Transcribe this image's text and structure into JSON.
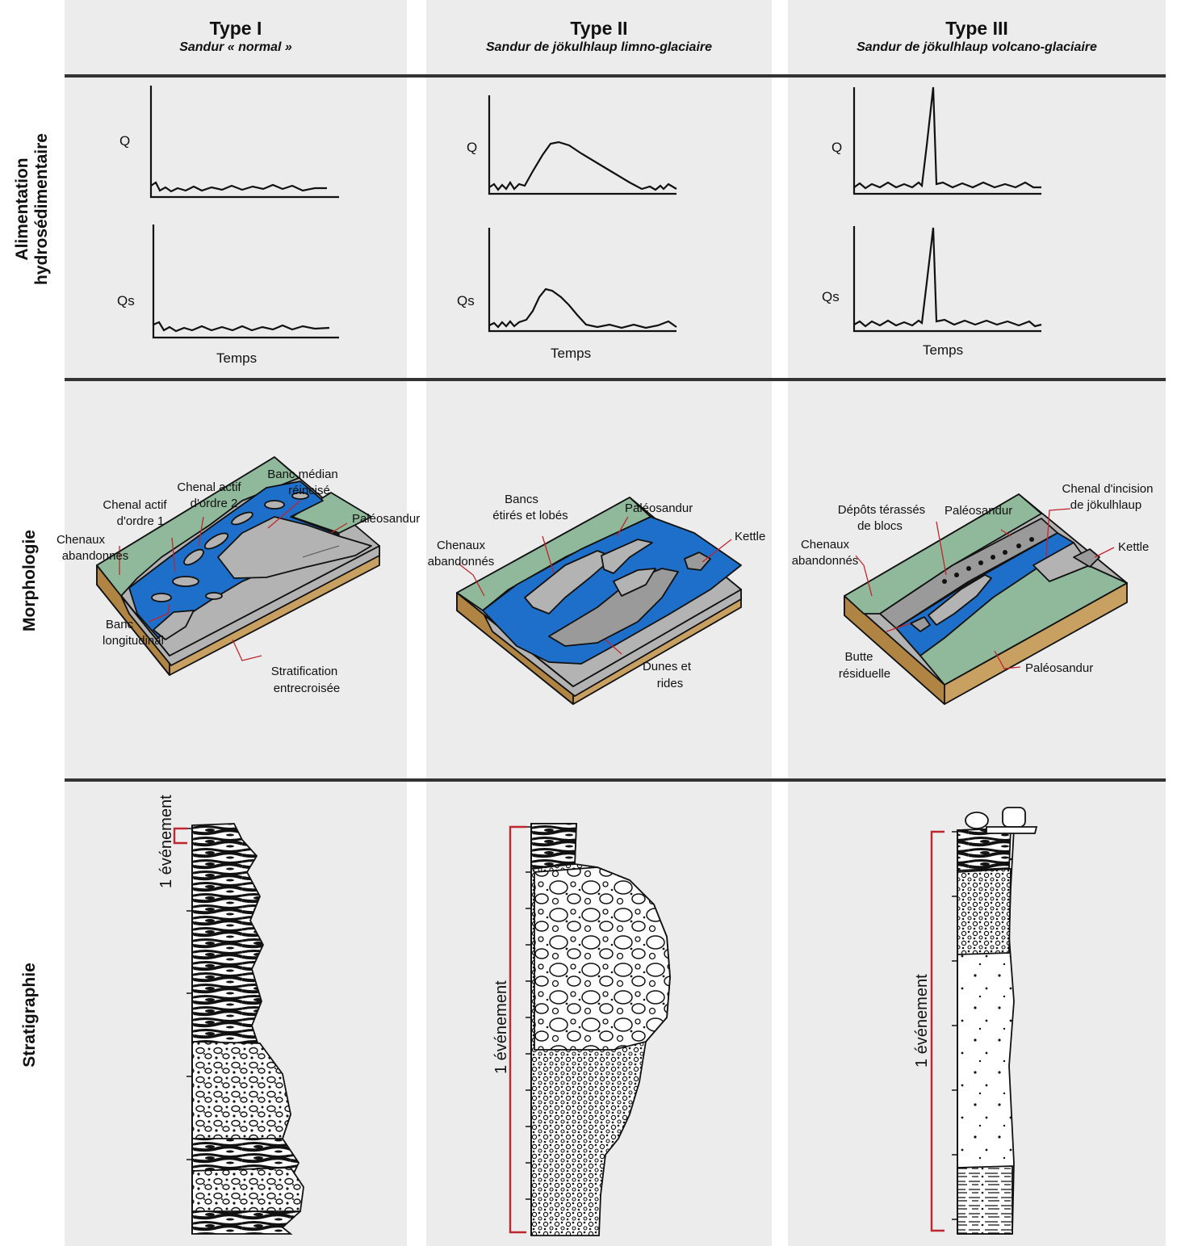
{
  "columns": [
    {
      "title": "Type I",
      "subtitle": "Sandur « normal »"
    },
    {
      "title": "Type II",
      "subtitle": "Sandur de jökulhlaup limno-glaciaire"
    },
    {
      "title": "Type III",
      "subtitle": "Sandur de jökulhlaup volcano-glaciaire"
    }
  ],
  "rows": {
    "alimentation": [
      "Alimentation",
      "hydrosédimentaire"
    ],
    "morphologie": "Morphologie",
    "stratigraphie": "Stratigraphie"
  },
  "axes": {
    "q": "Q",
    "qs": "Qs",
    "time": "Temps"
  },
  "morpho_labels": {
    "t1": {
      "chenaux": [
        "Chenaux",
        "abandonnés"
      ],
      "chenal1": [
        "Chenal actif",
        "d'ordre 1"
      ],
      "chenal2": [
        "Chenal actif",
        "d'ordre 2"
      ],
      "banc_median": [
        "Banc médian",
        "réincisé"
      ],
      "paleo": "Paléosandur",
      "banc_long": [
        "Banc",
        "longitudinal"
      ],
      "strat": [
        "Stratification",
        "entrecroisée"
      ]
    },
    "t2": {
      "chenaux": [
        "Chenaux",
        "abandonnés"
      ],
      "bancs": [
        "Bancs",
        "étirés et lobés"
      ],
      "paleo": "Paléosandur",
      "kettle": "Kettle",
      "dunes": [
        "Dunes et",
        "rides"
      ]
    },
    "t3": {
      "chenaux": [
        "Chenaux",
        "abandonnés"
      ],
      "depots": [
        "Dépôts térassés",
        "de blocs"
      ],
      "paleo1": "Paléosandur",
      "chenal": [
        "Chenal d'incision",
        "de jökulhlaup"
      ],
      "kettle": "Kettle",
      "butte": [
        "Butte",
        "résiduelle"
      ],
      "paleo2": "Paléosandur"
    }
  },
  "event_label": "1 événement",
  "colors": {
    "water": "#1e6fc9",
    "green": "#8fb99a",
    "gray": "#b3b3b3",
    "brown": "#c8a162",
    "red": "#c0262d",
    "panel": "#ececec"
  }
}
